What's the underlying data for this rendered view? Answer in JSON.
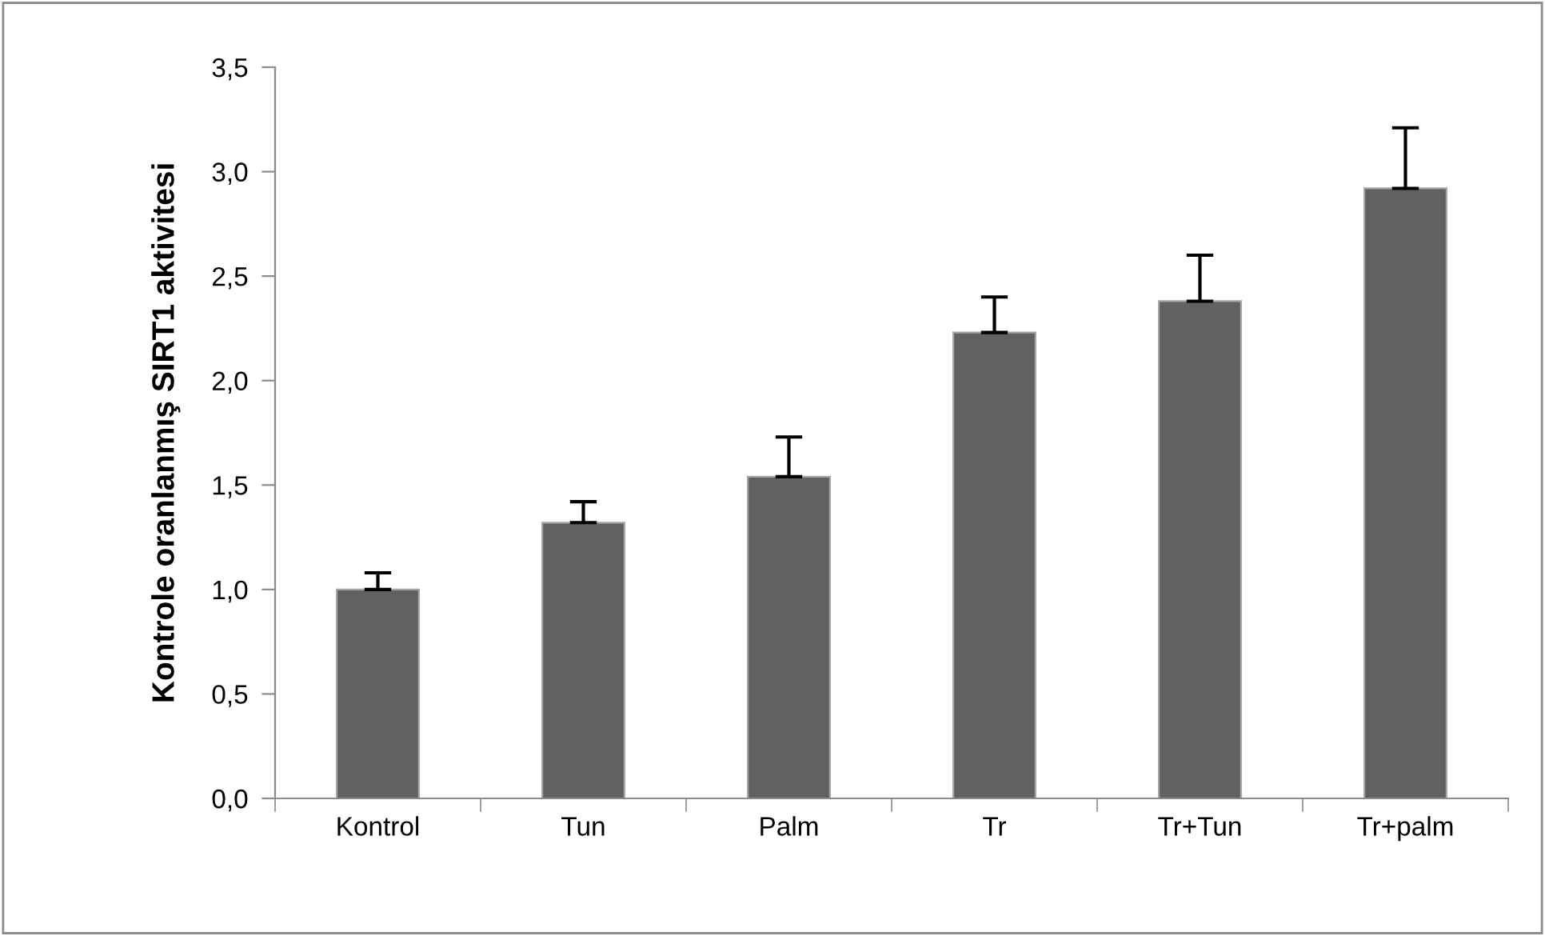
{
  "chart_data": {
    "type": "bar",
    "ylabel": "Kontrole oranlanmış SIRT1 aktivitesi",
    "categories": [
      "Kontrol",
      "Tun",
      "Palm",
      "Tr",
      "Tr+Tun",
      "Tr+palm"
    ],
    "values": [
      1.0,
      1.32,
      1.54,
      2.23,
      2.38,
      2.92
    ],
    "errors": [
      [
        1.0,
        1.08
      ],
      [
        1.32,
        1.42
      ],
      [
        1.54,
        1.73
      ],
      [
        2.23,
        2.4
      ],
      [
        2.38,
        2.6
      ],
      [
        2.92,
        3.21
      ]
    ],
    "color": "#616161",
    "ylim": [
      0,
      3.5
    ],
    "yticks": [
      {
        "value": 0,
        "label": "0,0"
      },
      {
        "value": 0.5,
        "label": "0,5"
      },
      {
        "value": 1,
        "label": "1,0"
      },
      {
        "value": 1.5,
        "label": "1,5"
      },
      {
        "value": 2,
        "label": "2,0"
      },
      {
        "value": 2.5,
        "label": "2,5"
      },
      {
        "value": 3,
        "label": "3,0"
      },
      {
        "value": 3.5,
        "label": "3,5"
      }
    ],
    "grid": false
  }
}
